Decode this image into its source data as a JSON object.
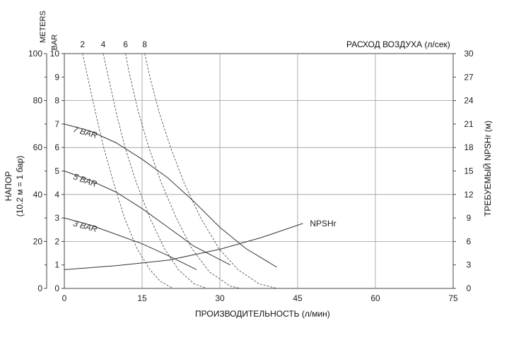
{
  "chart_data": {
    "type": "line",
    "title": "",
    "top_axis_label": "РАСХОД ВОЗДУХА (л/сек)",
    "xlabel": "ПРОИЗВОДИТЕЛЬНОСТЬ (л/мин)",
    "ylabel_left_line1": "НАПОР",
    "ylabel_left_line2": "(10.2 м = 1 бар)",
    "ylabel_right": "ТРЕБУЕМЫЙ NPSHr (м)",
    "unit_meters": "METERS",
    "unit_bar": "BAR",
    "xlim": [
      0,
      75
    ],
    "ylim_bar": [
      0,
      10
    ],
    "x_ticks": [
      "0",
      "15",
      "30",
      "45",
      "60",
      "75"
    ],
    "x_tick_values": [
      0,
      15,
      30,
      45,
      60,
      75
    ],
    "meters_ticks": [
      "0",
      "20",
      "40",
      "60",
      "80",
      "100"
    ],
    "meters_tick_values": [
      0,
      20,
      40,
      60,
      80,
      100
    ],
    "bar_ticks": [
      "0",
      "1",
      "2",
      "3",
      "4",
      "5",
      "6",
      "7",
      "8",
      "9",
      "10"
    ],
    "bar_tick_values": [
      0,
      1,
      2,
      3,
      4,
      5,
      6,
      7,
      8,
      9,
      10
    ],
    "right_ticks": [
      "0",
      "3",
      "6",
      "9",
      "12",
      "15",
      "18",
      "21",
      "24",
      "27",
      "30"
    ],
    "right_tick_values": [
      0,
      3,
      6,
      9,
      12,
      15,
      18,
      21,
      24,
      27,
      30
    ],
    "grid": true,
    "series": [
      {
        "name": "7 BAR",
        "points": [
          [
            0,
            7.0
          ],
          [
            5,
            6.7
          ],
          [
            10,
            6.2
          ],
          [
            15,
            5.5
          ],
          [
            20,
            4.7
          ],
          [
            25,
            3.7
          ],
          [
            30,
            2.6
          ],
          [
            35,
            1.7
          ],
          [
            41,
            0.9
          ]
        ]
      },
      {
        "name": "5 BAR",
        "points": [
          [
            0,
            5.0
          ],
          [
            5,
            4.6
          ],
          [
            10,
            4.1
          ],
          [
            15,
            3.4
          ],
          [
            20,
            2.6
          ],
          [
            25,
            1.8
          ],
          [
            32,
            1.0
          ]
        ]
      },
      {
        "name": "3 BAR",
        "points": [
          [
            0,
            3.0
          ],
          [
            5,
            2.7
          ],
          [
            10,
            2.3
          ],
          [
            15,
            1.9
          ],
          [
            20,
            1.4
          ],
          [
            25.5,
            0.8
          ]
        ]
      },
      {
        "name": "NPSHr",
        "axis": "right",
        "points": [
          [
            0,
            2.4
          ],
          [
            10,
            2.9
          ],
          [
            20,
            3.6
          ],
          [
            30,
            5.0
          ],
          [
            38,
            6.5
          ],
          [
            46,
            8.3
          ]
        ]
      }
    ],
    "air_flow_curves": [
      {
        "label": "2",
        "points": [
          [
            3.5,
            10.0
          ],
          [
            4.5,
            9.0
          ],
          [
            6.0,
            7.5
          ],
          [
            7.6,
            6.0
          ],
          [
            9.5,
            4.5
          ],
          [
            11.6,
            3.0
          ],
          [
            14.0,
            1.7
          ],
          [
            16.5,
            0.8
          ],
          [
            18.5,
            0.3
          ],
          [
            21.0,
            0.0
          ]
        ]
      },
      {
        "label": "4",
        "points": [
          [
            7.5,
            10.0
          ],
          [
            8.5,
            9.0
          ],
          [
            10.0,
            7.5
          ],
          [
            11.7,
            6.0
          ],
          [
            13.9,
            4.5
          ],
          [
            16.5,
            3.0
          ],
          [
            19.3,
            1.7
          ],
          [
            22.0,
            0.8
          ],
          [
            25.0,
            0.2
          ],
          [
            27.5,
            0.0
          ]
        ]
      },
      {
        "label": "6",
        "points": [
          [
            11.8,
            10.0
          ],
          [
            12.7,
            9.0
          ],
          [
            14.3,
            7.5
          ],
          [
            16.3,
            6.0
          ],
          [
            18.7,
            4.5
          ],
          [
            21.6,
            3.0
          ],
          [
            24.6,
            1.7
          ],
          [
            28.0,
            0.7
          ],
          [
            32.0,
            0.1
          ],
          [
            34.0,
            0.0
          ]
        ]
      },
      {
        "label": "8",
        "points": [
          [
            15.5,
            10.0
          ],
          [
            16.5,
            9.0
          ],
          [
            18.3,
            7.5
          ],
          [
            20.5,
            6.0
          ],
          [
            23.1,
            4.5
          ],
          [
            26.3,
            3.0
          ],
          [
            29.8,
            1.7
          ],
          [
            33.5,
            0.8
          ],
          [
            37.5,
            0.2
          ],
          [
            41.0,
            0.0
          ]
        ]
      }
    ]
  }
}
